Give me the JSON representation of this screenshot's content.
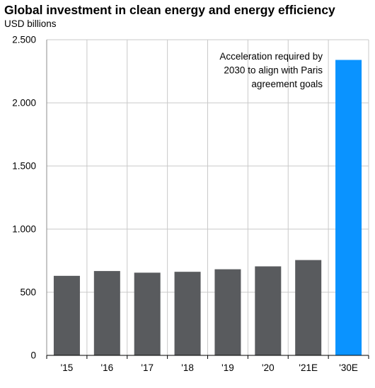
{
  "chart_data": {
    "type": "bar",
    "title": "Global investment in clean energy and energy efficiency",
    "subtitle": "USD billions",
    "categories": [
      "'15",
      "'16",
      "'17",
      "'18",
      "'19",
      "'20",
      "'21E",
      "'30E"
    ],
    "values": [
      630,
      668,
      655,
      662,
      682,
      705,
      755,
      2340
    ],
    "yticks": [
      0,
      500,
      1000,
      1500,
      2000,
      2500
    ],
    "ytick_labels": [
      "0",
      "500",
      "1.000",
      "1.500",
      "2.000",
      "2.500"
    ],
    "ylim": [
      0,
      2500
    ],
    "grid": true,
    "legend": "none",
    "annotation": {
      "lines": [
        "Acceleration required by",
        "2030 to align with Paris",
        "agreement goals"
      ]
    },
    "colors": {
      "actual": "#595b5e",
      "target": "#0a93ff",
      "grid": "#c9c9c9",
      "axis": "#8c8c8c"
    }
  }
}
